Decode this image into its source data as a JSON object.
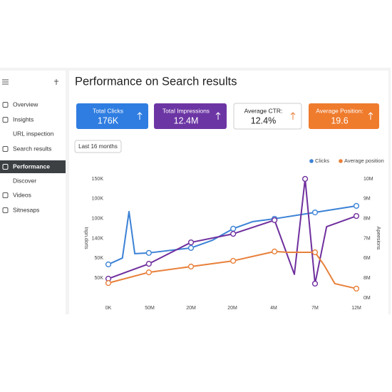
{
  "sidebar": {
    "items": [
      "Overview",
      "Insights",
      "URL inspection",
      "Search results",
      "Performance",
      "Discover",
      "Videos",
      "Sitnesaps"
    ]
  },
  "header": {
    "title": "Performance on Search results"
  },
  "cards": [
    {
      "label": "Total Clicks",
      "value": "176K",
      "color": "#2f7de1"
    },
    {
      "label": "Total Impressions",
      "value": "12.4M",
      "color": "#6c35a4"
    },
    {
      "label": "Average CTR:",
      "value": "12.4%",
      "color": "#ffffff"
    },
    {
      "label": "Average Position:",
      "value": "19.6",
      "color": "#ef7b2d"
    }
  ],
  "date_button": "Last 16 months",
  "chart_data": {
    "type": "line",
    "y_labels": [
      "150K",
      "100K",
      "100K",
      "140K",
      "50K",
      "50K"
    ],
    "y2_labels": [
      "10M",
      "9M",
      "8M",
      "7M",
      "6M",
      "8M",
      "0M"
    ],
    "x_labels": [
      "0K",
      "50M",
      "20M",
      "20M",
      "4M",
      "7M",
      "12M"
    ],
    "y_title": "Inpn.dorts",
    "y2_title": "Apeesions",
    "xlim": [
      0,
      6
    ],
    "ylim": [
      0,
      6
    ],
    "series": [
      {
        "name": "Clicks",
        "color": "#3b82d6",
        "x": [
          0,
          0.34,
          0.5,
          0.64,
          0.98,
          2.0,
          2.52,
          3.02,
          3.5,
          4.02,
          5.0,
          6.0
        ],
        "values": [
          1.69,
          2.01,
          4.35,
          2.23,
          2.27,
          2.52,
          2.91,
          3.49,
          3.85,
          3.99,
          4.31,
          4.64
        ]
      },
      {
        "color": "#6f2f9e",
        "x": [
          0,
          0.98,
          2.0,
          3.02,
          4.02,
          4.5,
          4.76,
          5.0,
          5.28,
          6.0
        ],
        "values": [
          0.97,
          1.72,
          2.8,
          3.23,
          3.92,
          1.19,
          6.0,
          0.72,
          3.59,
          4.13
        ]
      },
      {
        "name": "Average position",
        "color": "#e8803a",
        "x": [
          0,
          0.98,
          2.0,
          3.02,
          4.02,
          4.36,
          5.0,
          5.22,
          5.48,
          6.0
        ],
        "values": [
          0.75,
          1.29,
          1.58,
          1.87,
          2.34,
          2.3,
          2.3,
          1.65,
          0.72,
          0.47
        ]
      }
    ]
  }
}
